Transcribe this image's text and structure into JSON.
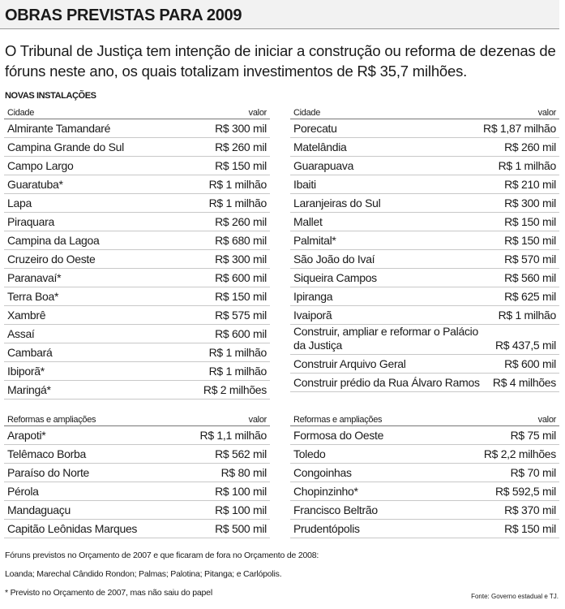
{
  "title": "OBRAS PREVISTAS PARA 2009",
  "intro": "O Tribunal de Justiça tem intenção de iniciar a construção ou reforma de dezenas de fóruns neste ano, os quais totalizam investimentos de R$ 35,7 milhões.",
  "section_title": "NOVAS INSTALAÇÕES",
  "new_left": {
    "header": [
      "Cidade",
      "valor"
    ],
    "rows": [
      [
        "Almirante Tamandaré",
        "R$ 300 mil"
      ],
      [
        "Campina Grande do Sul",
        "R$ 260 mil"
      ],
      [
        "Campo Largo",
        "R$ 150 mil"
      ],
      [
        "Guaratuba*",
        "R$ 1 milhão"
      ],
      [
        "Lapa",
        "R$ 1 milhão"
      ],
      [
        "Piraquara",
        "R$ 260 mil"
      ],
      [
        "Campina da Lagoa",
        "R$ 680 mil"
      ],
      [
        "Cruzeiro do Oeste",
        "R$ 300 mil"
      ],
      [
        "Paranavaí*",
        "R$ 600 mil"
      ],
      [
        "Terra Boa*",
        "R$ 150 mil"
      ],
      [
        "Xambrê",
        "R$ 575 mil"
      ],
      [
        "Assaí",
        "R$ 600 mil"
      ],
      [
        "Cambará",
        "R$ 1 milhão"
      ],
      [
        "Ibiporã*",
        "R$ 1 milhão"
      ],
      [
        "Maringá*",
        "R$ 2 milhões"
      ]
    ]
  },
  "new_right": {
    "header": [
      "Cidade",
      "valor"
    ],
    "rows": [
      [
        "Porecatu",
        "R$ 1,87 milhão"
      ],
      [
        "Matelândia",
        "R$ 260 mil"
      ],
      [
        "Guarapuava",
        "R$ 1 milhão"
      ],
      [
        "Ibaiti",
        "R$ 210 mil"
      ],
      [
        "Laranjeiras do Sul",
        "R$ 300 mil"
      ],
      [
        "Mallet",
        "R$ 150 mil"
      ],
      [
        "Palmital*",
        "R$ 150 mil"
      ],
      [
        "São João do Ivaí",
        "R$ 570 mil"
      ],
      [
        "Siqueira Campos",
        "R$ 560 mil"
      ],
      [
        "Ipiranga",
        "R$ 625 mil"
      ],
      [
        "Ivaiporã",
        "R$ 1 milhão"
      ],
      [
        "Construir, ampliar e reformar o Palácio da Justiça",
        "R$ 437,5 mil"
      ],
      [
        "Construir Arquivo Geral",
        "R$ 600 mil"
      ],
      [
        "Construir prédio da Rua Álvaro Ramos",
        "R$ 4 milhões"
      ]
    ]
  },
  "reform_left": {
    "header": [
      "Reformas e ampliações",
      "valor"
    ],
    "rows": [
      [
        "Arapoti*",
        "R$ 1,1 milhão"
      ],
      [
        "Telêmaco Borba",
        "R$ 562 mil"
      ],
      [
        "Paraíso do Norte",
        "R$ 80 mil"
      ],
      [
        "Pérola",
        "R$ 100 mil"
      ],
      [
        "Mandaguaçu",
        "R$ 100 mil"
      ],
      [
        "Capitão Leônidas Marques",
        "R$ 500 mil"
      ]
    ]
  },
  "reform_right": {
    "header": [
      "Reformas e ampliações",
      "valor"
    ],
    "rows": [
      [
        "Formosa do Oeste",
        "R$ 75 mil"
      ],
      [
        "Toledo",
        "R$ 2,2 milhões"
      ],
      [
        "Congoinhas",
        "R$ 70 mil"
      ],
      [
        "Chopinzinho*",
        "R$ 592,5 mil"
      ],
      [
        "Francisco Beltrão",
        "R$ 370 mil"
      ],
      [
        "Prudentópolis",
        "R$ 150 mil"
      ]
    ]
  },
  "notes": [
    "Fóruns previstos no Orçamento de 2007 e que ficaram de fora no Orçamento de 2008:",
    "Loanda; Marechal Cândido Rondon; Palmas; Palotina; Pitanga; e Carlópolis.",
    "* Previsto no Orçamento de 2007, mas não saiu do papel"
  ],
  "source": "Fonte: Governo estadual e TJ."
}
